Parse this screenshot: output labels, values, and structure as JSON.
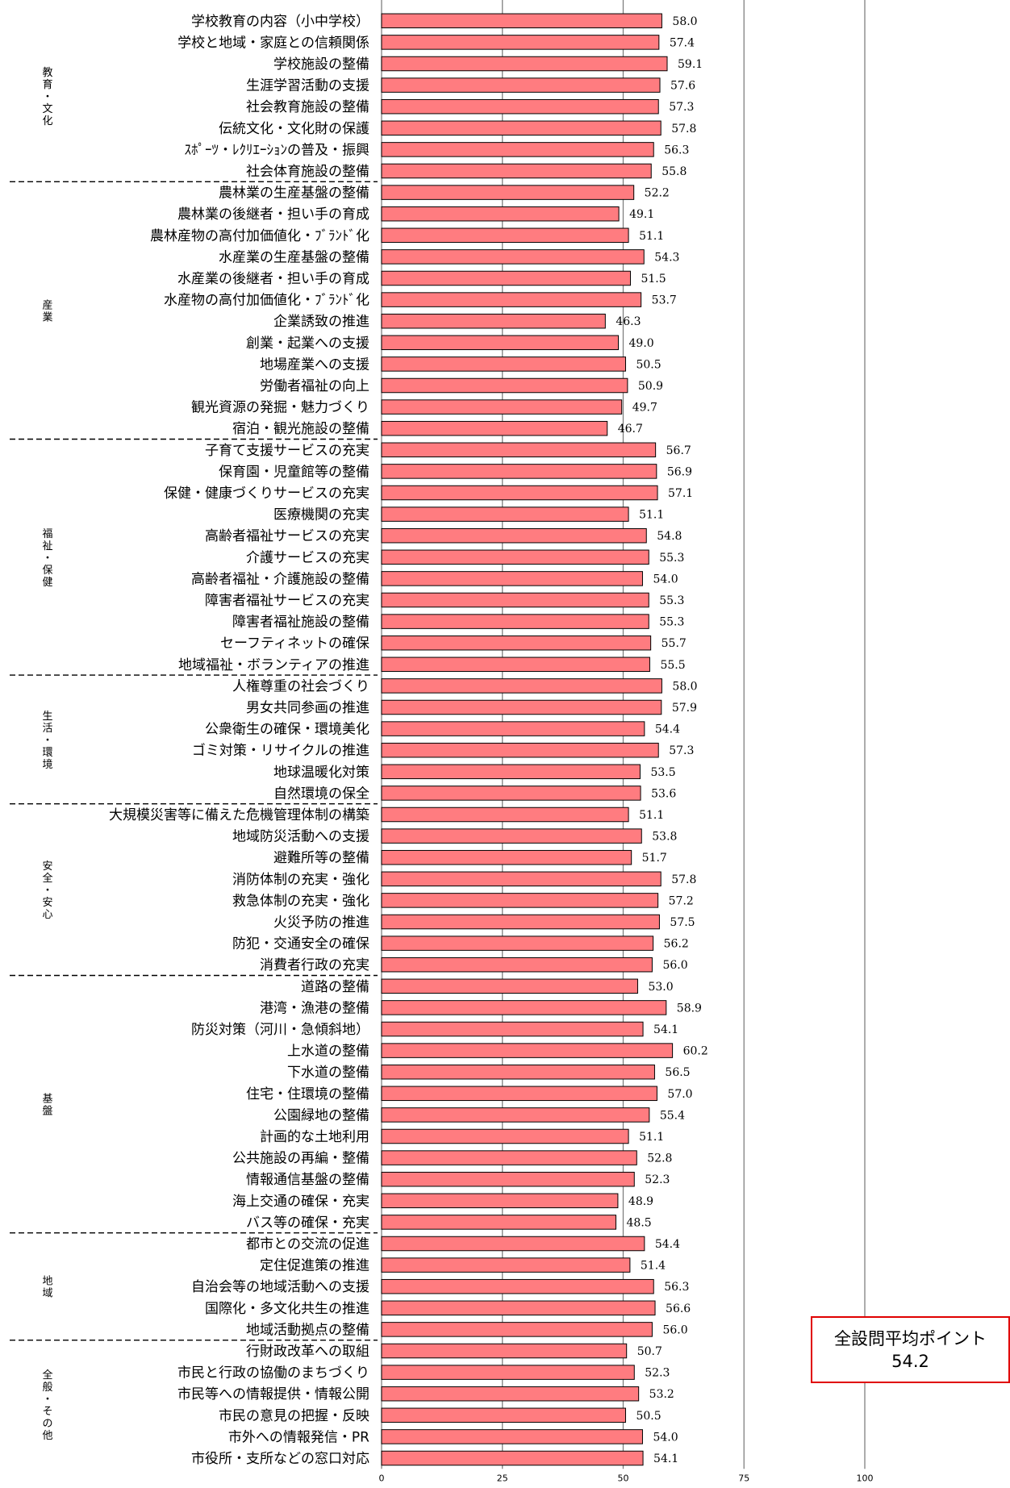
{
  "chart_data": {
    "type": "bar",
    "orientation": "horizontal",
    "xlim": [
      0,
      100
    ],
    "xticks": [
      "0",
      "25",
      "50",
      "75",
      "100"
    ],
    "grid": true,
    "categories": [
      "学校教育の内容（小中学校）",
      "学校と地域・家庭との信頼関係",
      "学校施設の整備",
      "生涯学習活動の支援",
      "社会教育施設の整備",
      "伝統文化・文化財の保護",
      "ｽﾎﾟｰﾂ・ﾚｸﾘｴｰｼｮﾝの普及・振興",
      "社会体育施設の整備",
      "農林業の生産基盤の整備",
      "農林業の後継者・担い手の育成",
      "農林産物の高付加価値化・ﾌﾞﾗﾝﾄﾞ化",
      "水産業の生産基盤の整備",
      "水産業の後継者・担い手の育成",
      "水産物の高付加価値化・ﾌﾞﾗﾝﾄﾞ化",
      "企業誘致の推進",
      "創業・起業への支援",
      "地場産業への支援",
      "労働者福祉の向上",
      "観光資源の発掘・魅力づくり",
      "宿泊・観光施設の整備",
      "子育て支援サービスの充実",
      "保育園・児童館等の整備",
      "保健・健康づくりサービスの充実",
      "医療機関の充実",
      "高齢者福祉サービスの充実",
      "介護サービスの充実",
      "高齢者福祉・介護施設の整備",
      "障害者福祉サービスの充実",
      "障害者福祉施設の整備",
      "セーフティネットの確保",
      "地域福祉・ボランティアの推進",
      "人権尊重の社会づくり",
      "男女共同参画の推進",
      "公衆衛生の確保・環境美化",
      "ゴミ対策・リサイクルの推進",
      "地球温暖化対策",
      "自然環境の保全",
      "大規模災害等に備えた危機管理体制の構築",
      "地域防災活動への支援",
      "避難所等の整備",
      "消防体制の充実・強化",
      "救急体制の充実・強化",
      "火災予防の推進",
      "防犯・交通安全の確保",
      "消費者行政の充実",
      "道路の整備",
      "港湾・漁港の整備",
      "防災対策（河川・急傾斜地）",
      "上水道の整備",
      "下水道の整備",
      "住宅・住環境の整備",
      "公園緑地の整備",
      "計画的な土地利用",
      "公共施設の再編・整備",
      "情報通信基盤の整備",
      "海上交通の確保・充実",
      "バス等の確保・充実",
      "都市との交流の促進",
      "定住促進策の推進",
      "自治会等の地域活動への支援",
      "国際化・多文化共生の推進",
      "地域活動拠点の整備",
      "行財政改革への取組",
      "市民と行政の協働のまちづくり",
      "市民等への情報提供・情報公開",
      "市民の意見の把握・反映",
      "市外への情報発信・PR",
      "市役所・支所などの窓口対応"
    ],
    "values": [
      58.0,
      57.4,
      59.1,
      57.6,
      57.3,
      57.8,
      56.3,
      55.8,
      52.2,
      49.1,
      51.1,
      54.3,
      51.5,
      53.7,
      46.3,
      49.0,
      50.5,
      50.9,
      49.7,
      46.7,
      56.7,
      56.9,
      57.1,
      51.1,
      54.8,
      55.3,
      54.0,
      55.3,
      55.3,
      55.7,
      55.5,
      58.0,
      57.9,
      54.4,
      57.3,
      53.5,
      53.6,
      51.1,
      53.8,
      51.7,
      57.8,
      57.2,
      57.5,
      56.2,
      56.0,
      53.0,
      58.9,
      54.1,
      60.2,
      56.5,
      57.0,
      55.4,
      51.1,
      52.8,
      52.3,
      48.9,
      48.5,
      54.4,
      51.4,
      56.3,
      56.6,
      56.0,
      50.7,
      52.3,
      53.2,
      50.5,
      54.0,
      54.1
    ],
    "value_labels": [
      "58.0",
      "57.4",
      "59.1",
      "57.6",
      "57.3",
      "57.8",
      "56.3",
      "55.8",
      "52.2",
      "49.1",
      "51.1",
      "54.3",
      "51.5",
      "53.7",
      "46.3",
      "49.0",
      "50.5",
      "50.9",
      "49.7",
      "46.7",
      "56.7",
      "56.9",
      "57.1",
      "51.1",
      "54.8",
      "55.3",
      "54.0",
      "55.3",
      "55.3",
      "55.7",
      "55.5",
      "58.0",
      "57.9",
      "54.4",
      "57.3",
      "53.5",
      "53.6",
      "51.1",
      "53.8",
      "51.7",
      "57.8",
      "57.2",
      "57.5",
      "56.2",
      "56.0",
      "53.0",
      "58.9",
      "54.1",
      "60.2",
      "56.5",
      "57.0",
      "55.4",
      "51.1",
      "52.8",
      "52.3",
      "48.9",
      "48.5",
      "54.4",
      "51.4",
      "56.3",
      "56.6",
      "56.0",
      "50.7",
      "52.3",
      "53.2",
      "50.5",
      "54.0",
      "54.1"
    ],
    "groups": [
      {
        "label": "教育・文化",
        "start": 0,
        "count": 8
      },
      {
        "label": "産業",
        "start": 8,
        "count": 12
      },
      {
        "label": "福祉・保健",
        "start": 20,
        "count": 11
      },
      {
        "label": "生活・環境",
        "start": 31,
        "count": 6
      },
      {
        "label": "安全・安心",
        "start": 37,
        "count": 8
      },
      {
        "label": "基盤",
        "start": 45,
        "count": 12
      },
      {
        "label": "地域",
        "start": 57,
        "count": 5
      },
      {
        "label": "全般・その他",
        "start": 62,
        "count": 6
      }
    ],
    "bar_color": "#ff7c80",
    "annotation": {
      "line1": "全設問平均ポイント",
      "line2": "54.2"
    }
  }
}
